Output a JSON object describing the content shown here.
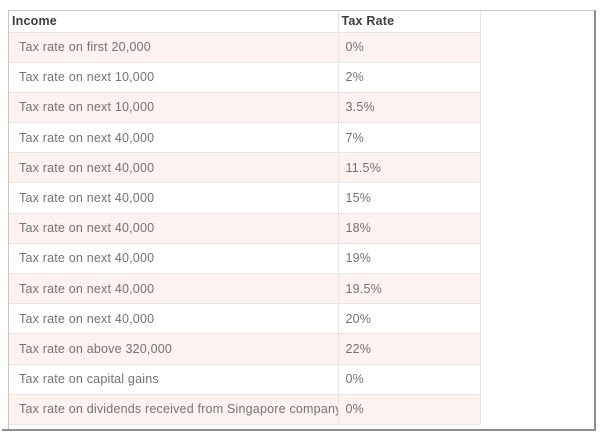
{
  "chart_data": {
    "type": "table",
    "columns": [
      "Income",
      "Tax Rate"
    ],
    "rows": [
      [
        "Tax rate on first 20,000",
        "0%"
      ],
      [
        "Tax rate on next 10,000",
        "2%"
      ],
      [
        "Tax rate on next 10,000",
        "3.5%"
      ],
      [
        "Tax rate on next 40,000",
        "7%"
      ],
      [
        "Tax rate on next 40,000",
        "11.5%"
      ],
      [
        "Tax rate on next 40,000",
        "15%"
      ],
      [
        "Tax rate on next 40,000",
        "18%"
      ],
      [
        "Tax rate on next 40,000",
        "19%"
      ],
      [
        "Tax rate on next 40,000",
        "19.5%"
      ],
      [
        "Tax rate on next 40,000",
        "20%"
      ],
      [
        "Tax rate on above 320,000",
        "22%"
      ],
      [
        "Tax rate on capital gains",
        "0%"
      ],
      [
        "Tax rate on dividends received from Singapore company",
        "0%"
      ]
    ],
    "layout_hints": {
      "zebra_striping": true,
      "first_data_row_shaded": true,
      "header_background": "#ffffff"
    }
  },
  "colors": {
    "stripe_bg": "#fcf2f0",
    "row_bg": "#ffffff",
    "grid_line": "#e9e6e6",
    "outer_border": "#c9c6c6",
    "outer_border_dark": "#8f8d8d",
    "header_text": "#3f3d3e",
    "cell_text": "#757273",
    "page_bg": "#ffffff"
  }
}
